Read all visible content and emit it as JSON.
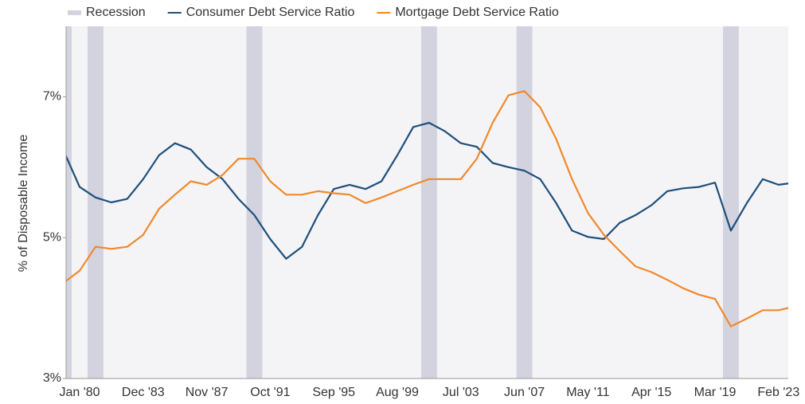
{
  "chart_data": {
    "type": "line",
    "y_label": "% of Disposable Income",
    "categories": [
      null,
      "Jan '80",
      null,
      null,
      null,
      "Dec '83",
      null,
      null,
      null,
      "Nov '87",
      null,
      null,
      null,
      "Oct '91",
      null,
      null,
      null,
      "Sep '95",
      null,
      null,
      null,
      "Aug '99",
      null,
      null,
      null,
      "Jul '03",
      null,
      null,
      null,
      "Jun '07",
      null,
      null,
      null,
      "May '11",
      null,
      null,
      null,
      "Apr '15",
      null,
      null,
      null,
      "Mar '19",
      null,
      null,
      null,
      "Feb '23",
      null
    ],
    "recession": {
      "name": "Recession",
      "color": "#d3d3e0",
      "values": [
        1,
        0,
        1,
        0,
        0,
        0,
        0,
        0,
        0,
        0,
        0,
        0,
        1,
        0,
        0,
        0,
        0,
        0,
        0,
        0,
        0,
        0,
        0,
        1,
        0,
        0,
        0,
        0,
        0,
        1,
        0,
        0,
        0,
        0,
        0,
        0,
        0,
        0,
        0,
        0,
        0,
        0,
        1,
        0,
        0,
        0,
        0
      ]
    },
    "series": [
      {
        "name": "Consumer Debt Service Ratio",
        "color": "#1f4e79",
        "values": [
          6.23,
          5.72,
          5.57,
          5.5,
          5.55,
          5.83,
          6.17,
          6.34,
          6.25,
          6.0,
          5.83,
          5.55,
          5.32,
          4.98,
          4.7,
          4.87,
          5.32,
          5.69,
          5.75,
          5.69,
          5.8,
          6.17,
          6.57,
          6.63,
          6.51,
          6.34,
          6.29,
          6.06,
          6.0,
          5.95,
          5.83,
          5.49,
          5.1,
          5.01,
          4.98,
          5.21,
          5.32,
          5.46,
          5.66,
          5.7,
          5.72,
          5.78,
          5.1,
          5.49,
          5.83,
          5.75,
          5.78
        ]
      },
      {
        "name": "Mortgage Debt Service Ratio",
        "color": "#f0892a",
        "values": [
          4.36,
          4.53,
          4.87,
          4.84,
          4.87,
          5.04,
          5.41,
          5.61,
          5.8,
          5.75,
          5.89,
          6.12,
          6.12,
          5.8,
          5.61,
          5.61,
          5.66,
          5.63,
          5.61,
          5.49,
          5.57,
          5.66,
          5.75,
          5.83,
          5.83,
          5.83,
          6.12,
          6.63,
          7.02,
          7.08,
          6.85,
          6.4,
          5.83,
          5.35,
          5.04,
          4.81,
          4.59,
          4.51,
          4.4,
          4.28,
          4.19,
          4.13,
          3.74,
          3.85,
          3.97,
          3.97,
          4.02
        ]
      }
    ],
    "ylim": [
      3,
      8
    ],
    "yticks": [
      {
        "value": 3,
        "label": "3%"
      },
      {
        "value": 5,
        "label": "5%"
      },
      {
        "value": 7,
        "label": "7%"
      }
    ]
  }
}
